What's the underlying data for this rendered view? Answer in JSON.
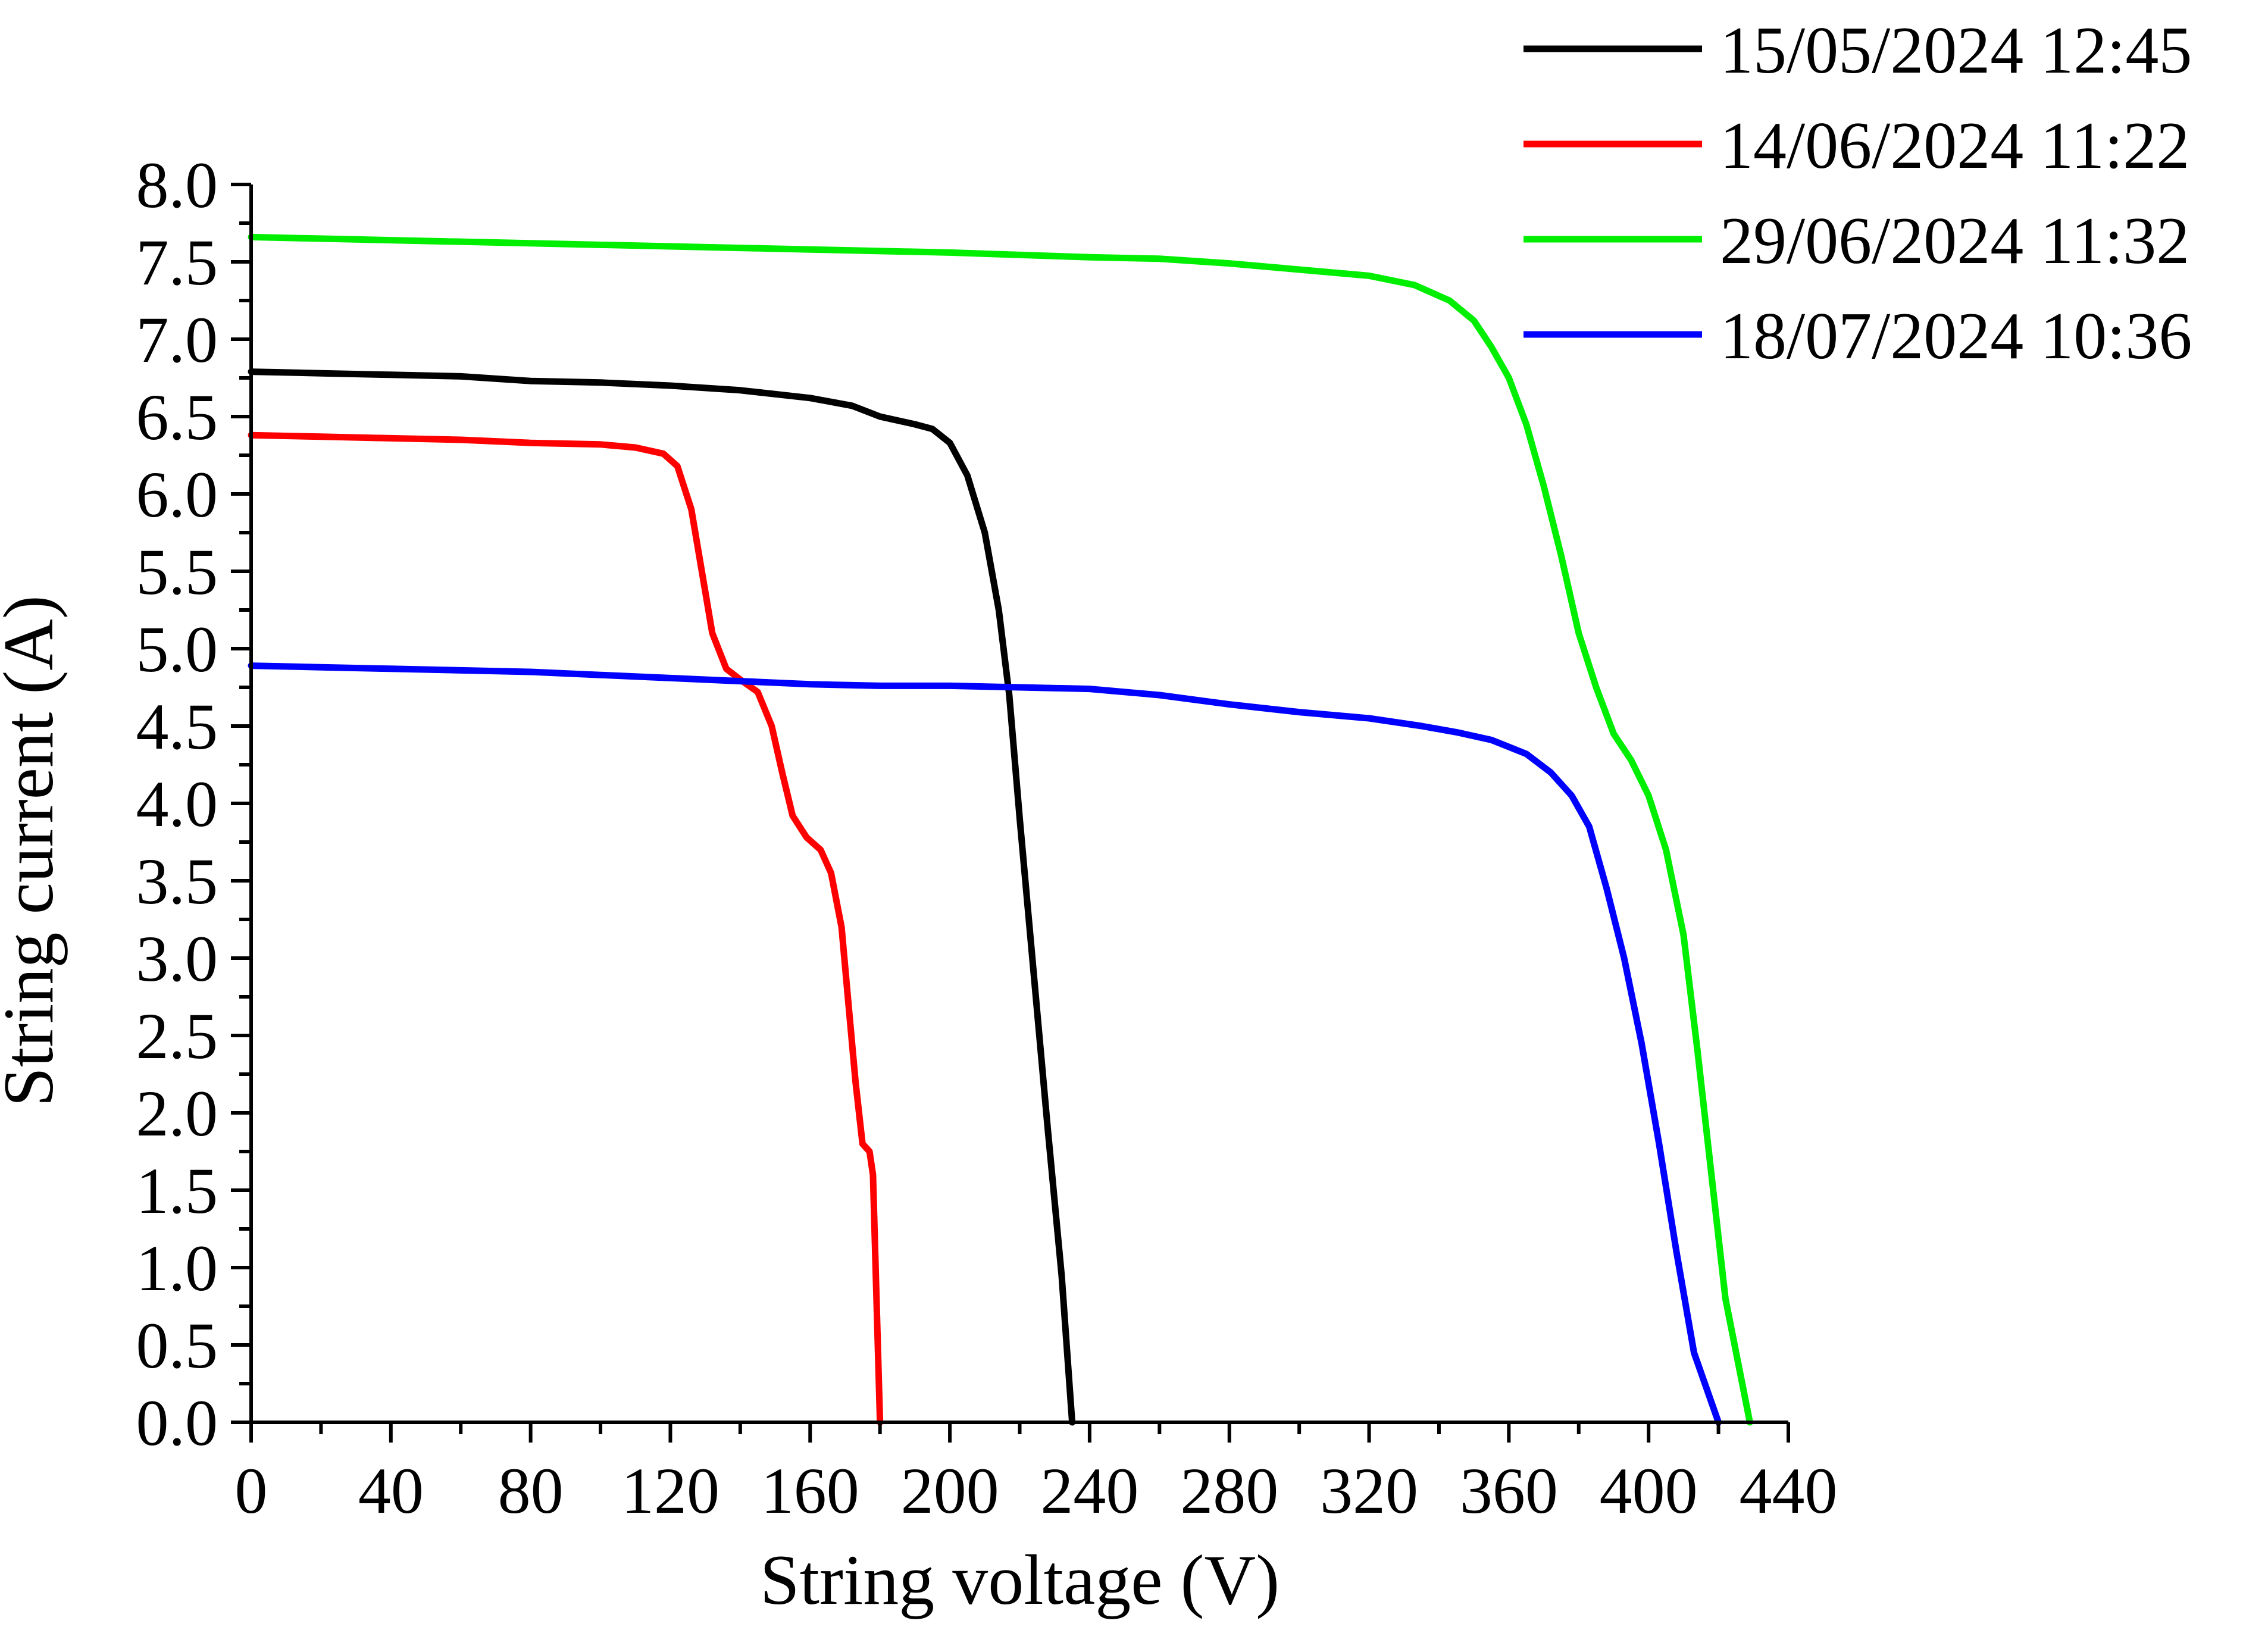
{
  "chart_data": {
    "type": "line",
    "title": "",
    "xlabel": "String voltage (V)",
    "ylabel": "String current (A)",
    "xlim": [
      0,
      440
    ],
    "ylim": [
      0,
      8.0
    ],
    "x_ticks": [
      0,
      40,
      80,
      120,
      160,
      200,
      240,
      280,
      320,
      360,
      400,
      440
    ],
    "x_tick_labels": [
      "0",
      "40",
      "80",
      "120",
      "160",
      "200",
      "240",
      "280",
      "320",
      "360",
      "400",
      "440"
    ],
    "y_ticks": [
      0,
      0.5,
      1.0,
      1.5,
      2.0,
      2.5,
      3.0,
      3.5,
      4.0,
      4.5,
      5.0,
      5.5,
      6.0,
      6.5,
      7.0,
      7.5,
      8.0
    ],
    "y_tick_labels": [
      "0.0",
      "0.5",
      "1.0",
      "1.5",
      "2.0",
      "2.5",
      "3.0",
      "3.5",
      "4.0",
      "4.5",
      "5.0",
      "5.5",
      "6.0",
      "6.5",
      "7.0",
      "7.5",
      "8.0"
    ],
    "grid": false,
    "legend_position": "top-right",
    "series": [
      {
        "name": "15/05/2024 12:45",
        "color": "#000000",
        "points": [
          [
            0,
            6.79
          ],
          [
            20,
            6.78
          ],
          [
            40,
            6.77
          ],
          [
            60,
            6.76
          ],
          [
            80,
            6.73
          ],
          [
            100,
            6.72
          ],
          [
            120,
            6.7
          ],
          [
            140,
            6.67
          ],
          [
            160,
            6.62
          ],
          [
            172,
            6.57
          ],
          [
            180,
            6.5
          ],
          [
            190,
            6.45
          ],
          [
            195,
            6.42
          ],
          [
            200,
            6.33
          ],
          [
            205,
            6.12
          ],
          [
            210,
            5.75
          ],
          [
            214,
            5.25
          ],
          [
            217,
            4.7
          ],
          [
            220,
            3.9
          ],
          [
            224,
            2.9
          ],
          [
            228,
            1.9
          ],
          [
            232,
            0.95
          ],
          [
            235,
            0.0
          ]
        ]
      },
      {
        "name": "14/06/2024 11:22",
        "color": "#ff0000",
        "points": [
          [
            0,
            6.38
          ],
          [
            20,
            6.37
          ],
          [
            40,
            6.36
          ],
          [
            60,
            6.35
          ],
          [
            80,
            6.33
          ],
          [
            100,
            6.32
          ],
          [
            110,
            6.3
          ],
          [
            118,
            6.26
          ],
          [
            122,
            6.18
          ],
          [
            126,
            5.9
          ],
          [
            129,
            5.5
          ],
          [
            132,
            5.1
          ],
          [
            136,
            4.87
          ],
          [
            140,
            4.8
          ],
          [
            145,
            4.72
          ],
          [
            149,
            4.5
          ],
          [
            152,
            4.2
          ],
          [
            155,
            3.92
          ],
          [
            159,
            3.78
          ],
          [
            163,
            3.7
          ],
          [
            166,
            3.55
          ],
          [
            169,
            3.2
          ],
          [
            171,
            2.7
          ],
          [
            173,
            2.2
          ],
          [
            175,
            1.8
          ],
          [
            177,
            1.75
          ],
          [
            178,
            1.6
          ],
          [
            179,
            0.8
          ],
          [
            180,
            0.0
          ]
        ]
      },
      {
        "name": "29/06/2024 11:32",
        "color": "#00ee00",
        "points": [
          [
            0,
            7.66
          ],
          [
            40,
            7.64
          ],
          [
            80,
            7.62
          ],
          [
            120,
            7.6
          ],
          [
            160,
            7.58
          ],
          [
            200,
            7.56
          ],
          [
            240,
            7.53
          ],
          [
            260,
            7.52
          ],
          [
            280,
            7.49
          ],
          [
            300,
            7.45
          ],
          [
            320,
            7.41
          ],
          [
            333,
            7.35
          ],
          [
            343,
            7.25
          ],
          [
            350,
            7.12
          ],
          [
            355,
            6.95
          ],
          [
            360,
            6.75
          ],
          [
            365,
            6.45
          ],
          [
            370,
            6.05
          ],
          [
            375,
            5.6
          ],
          [
            380,
            5.1
          ],
          [
            385,
            4.75
          ],
          [
            390,
            4.45
          ],
          [
            395,
            4.28
          ],
          [
            400,
            4.05
          ],
          [
            405,
            3.7
          ],
          [
            410,
            3.15
          ],
          [
            414,
            2.4
          ],
          [
            418,
            1.6
          ],
          [
            422,
            0.8
          ],
          [
            429,
            0.0
          ]
        ]
      },
      {
        "name": "18/07/2024 10:36",
        "color": "#0000ff",
        "points": [
          [
            0,
            4.89
          ],
          [
            20,
            4.88
          ],
          [
            40,
            4.87
          ],
          [
            60,
            4.86
          ],
          [
            80,
            4.85
          ],
          [
            100,
            4.83
          ],
          [
            120,
            4.81
          ],
          [
            140,
            4.79
          ],
          [
            160,
            4.77
          ],
          [
            180,
            4.76
          ],
          [
            200,
            4.76
          ],
          [
            220,
            4.75
          ],
          [
            240,
            4.74
          ],
          [
            260,
            4.7
          ],
          [
            280,
            4.64
          ],
          [
            300,
            4.59
          ],
          [
            320,
            4.55
          ],
          [
            335,
            4.5
          ],
          [
            345,
            4.46
          ],
          [
            355,
            4.41
          ],
          [
            365,
            4.32
          ],
          [
            372,
            4.2
          ],
          [
            378,
            4.05
          ],
          [
            383,
            3.85
          ],
          [
            388,
            3.45
          ],
          [
            393,
            3.0
          ],
          [
            398,
            2.45
          ],
          [
            403,
            1.8
          ],
          [
            408,
            1.1
          ],
          [
            413,
            0.45
          ],
          [
            420,
            0.0
          ]
        ]
      }
    ]
  }
}
